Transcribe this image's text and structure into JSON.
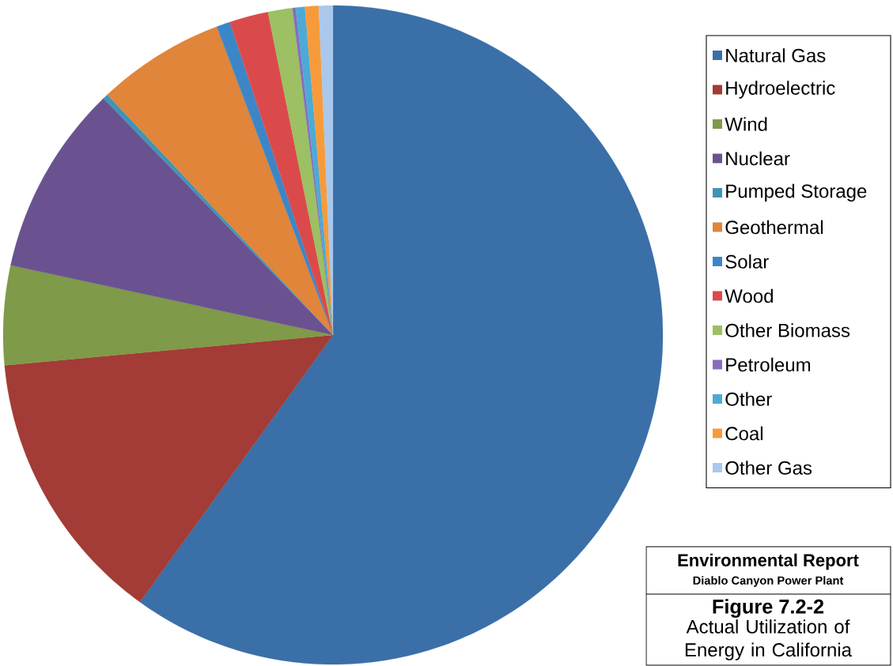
{
  "chart_data": {
    "type": "pie",
    "title": "Figure 7.2-2",
    "subtitle": "Actual Utilization of Energy in California",
    "annotations": [
      "Environmental Report",
      "Diablo Canyon Power Plant"
    ],
    "categories": [
      "Natural Gas",
      "Hydroelectric",
      "Wind",
      "Nuclear",
      "Pumped Storage",
      "Geothermal",
      "Solar",
      "Wood",
      "Other Biomass",
      "Petroleum",
      "Other",
      "Coal",
      "Other Gas"
    ],
    "values": [
      59.95,
      13.58,
      4.86,
      9.36,
      0.26,
      6.26,
      0.67,
      1.9,
      1.2,
      0.15,
      0.45,
      0.67,
      0.69
    ],
    "colors": [
      "#3a6fa8",
      "#a33b36",
      "#7f9a48",
      "#6a5291",
      "#3f95b5",
      "#e0853a",
      "#3c86c8",
      "#db4a4a",
      "#9cc063",
      "#8a6bbf",
      "#4daad6",
      "#f79b3a",
      "#a9c8ec"
    ],
    "legend": "right"
  }
}
